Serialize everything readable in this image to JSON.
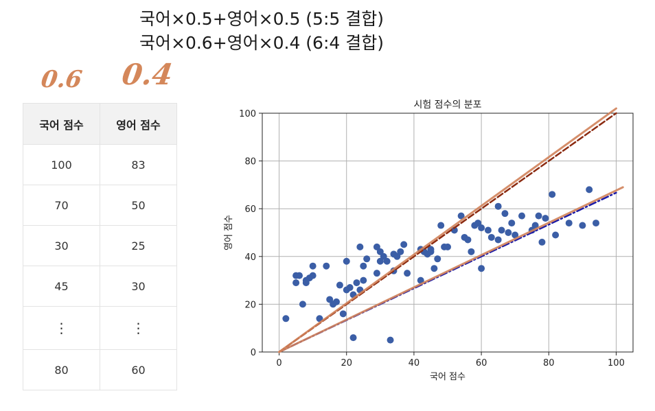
{
  "formulas": {
    "line1": "국어×0.5+영어×0.5 (5:5 결합)",
    "line2": "국어×0.6+영어×0.4 (6:4 결합)"
  },
  "handwritten": {
    "weight_korean": "0.6",
    "weight_english": "0.4"
  },
  "table": {
    "headers": [
      "국어 점수",
      "영어 점수"
    ],
    "rows": [
      [
        "100",
        "83"
      ],
      [
        "70",
        "50"
      ],
      [
        "30",
        "25"
      ],
      [
        "45",
        "30"
      ],
      [
        "⋮",
        "⋮"
      ],
      [
        "80",
        "60"
      ]
    ]
  },
  "colors": {
    "points": "#3b5ea6",
    "line_5_5_ref": "#8b2a10",
    "line_6_4_ref": "#1a1aa8",
    "overlay_lines": "#d0825a",
    "grid": "#b0b0b0"
  },
  "chart_data": {
    "type": "scatter",
    "title": "시험 점수의 분포",
    "xlabel": "국어 점수",
    "ylabel": "영어 점수",
    "xlim": [
      -5,
      105
    ],
    "ylim": [
      0,
      100
    ],
    "xticks": [
      0,
      20,
      40,
      60,
      80,
      100
    ],
    "yticks": [
      0,
      20,
      40,
      60,
      80,
      100
    ],
    "grid": true,
    "points": {
      "x": [
        2,
        5,
        5,
        6,
        7,
        8,
        8,
        9,
        10,
        10,
        12,
        14,
        15,
        16,
        17,
        18,
        19,
        20,
        20,
        21,
        22,
        22,
        23,
        24,
        24,
        25,
        25,
        26,
        29,
        29,
        30,
        30,
        31,
        32,
        33,
        34,
        34,
        35,
        36,
        37,
        38,
        42,
        42,
        43,
        44,
        45,
        45,
        46,
        47,
        48,
        49,
        50,
        52,
        54,
        55,
        56,
        57,
        58,
        59,
        60,
        60,
        62,
        63,
        65,
        65,
        66,
        67,
        68,
        69,
        70,
        72,
        75,
        76,
        77,
        78,
        79,
        81,
        82,
        86,
        90,
        92,
        94
      ],
      "y": [
        14,
        32,
        29,
        32,
        20,
        30,
        29,
        31,
        32,
        36,
        14,
        36,
        22,
        20,
        21,
        28,
        16,
        38,
        26,
        27,
        6,
        24,
        29,
        44,
        26,
        30,
        36,
        39,
        33,
        44,
        38,
        42,
        40,
        38,
        5,
        34,
        41,
        40,
        42,
        45,
        33,
        43,
        30,
        42,
        41,
        42,
        43,
        35,
        39,
        53,
        44,
        44,
        51,
        57,
        48,
        47,
        42,
        53,
        54,
        52,
        35,
        51,
        48,
        47,
        61,
        51,
        58,
        50,
        54,
        49,
        57,
        51,
        53,
        57,
        46,
        56,
        66,
        49,
        54,
        53,
        68,
        54
      ]
    },
    "lines": [
      {
        "style": "dashed",
        "color": "#8b2a10",
        "x": [
          0,
          100
        ],
        "y": [
          0,
          100
        ]
      },
      {
        "style": "dashdot",
        "color": "#1a1aa8",
        "x": [
          0,
          100
        ],
        "y": [
          0,
          66.7
        ]
      },
      {
        "style": "solid",
        "color": "#d0825a",
        "x": [
          0,
          100
        ],
        "y": [
          0,
          102
        ]
      },
      {
        "style": "solid",
        "color": "#d0825a",
        "x": [
          0,
          102
        ],
        "y": [
          0,
          69
        ]
      }
    ]
  }
}
